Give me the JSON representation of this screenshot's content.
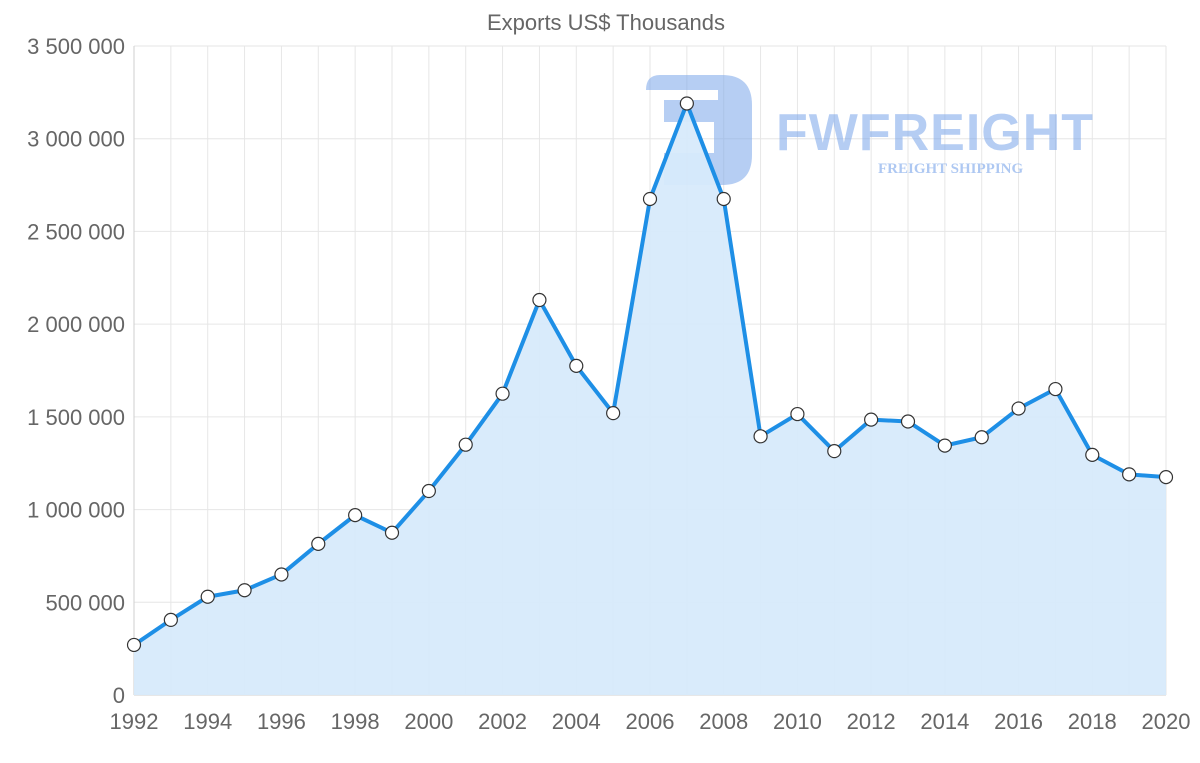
{
  "chart_data": {
    "type": "area",
    "title": "Exports US$ Thousands",
    "xlabel": "",
    "ylabel": "",
    "x": [
      1992,
      1993,
      1994,
      1995,
      1996,
      1997,
      1998,
      1999,
      2000,
      2001,
      2002,
      2003,
      2004,
      2005,
      2006,
      2007,
      2008,
      2009,
      2010,
      2011,
      2012,
      2013,
      2014,
      2015,
      2016,
      2017,
      2018,
      2019,
      2020
    ],
    "series": [
      {
        "name": "Exports US$ Thousands",
        "values": [
          270000,
          405000,
          530000,
          565000,
          650000,
          815000,
          970000,
          875000,
          1100000,
          1350000,
          1625000,
          2130000,
          1775000,
          1520000,
          2675000,
          3190000,
          2675000,
          1395000,
          1515000,
          1315000,
          1485000,
          1475000,
          1345000,
          1390000,
          1545000,
          1650000,
          1295000,
          1190000,
          1175000
        ],
        "line_color": "#1e8fe6",
        "fill_color": "#d7eafb",
        "point_fill": "#ffffff",
        "point_stroke": "#333333"
      }
    ],
    "ylim": [
      0,
      3500000
    ],
    "y_ticks": [
      0,
      500000,
      1000000,
      1500000,
      2000000,
      2500000,
      3000000,
      3500000
    ],
    "y_tick_labels": [
      "0",
      "500 000",
      "1 000 000",
      "1 500 000",
      "2 000 000",
      "2 500 000",
      "3 000 000",
      "3 500 000"
    ],
    "x_tick_labels": [
      "1992",
      "1994",
      "1996",
      "1998",
      "2000",
      "2002",
      "2004",
      "2006",
      "2008",
      "2010",
      "2012",
      "2014",
      "2016",
      "2018",
      "2020"
    ],
    "grid": true,
    "legend": "none"
  },
  "watermark": {
    "brand": "FWFREIGHT",
    "tagline": "FREIGHT SHIPPING",
    "color": "#7aa5ea"
  }
}
